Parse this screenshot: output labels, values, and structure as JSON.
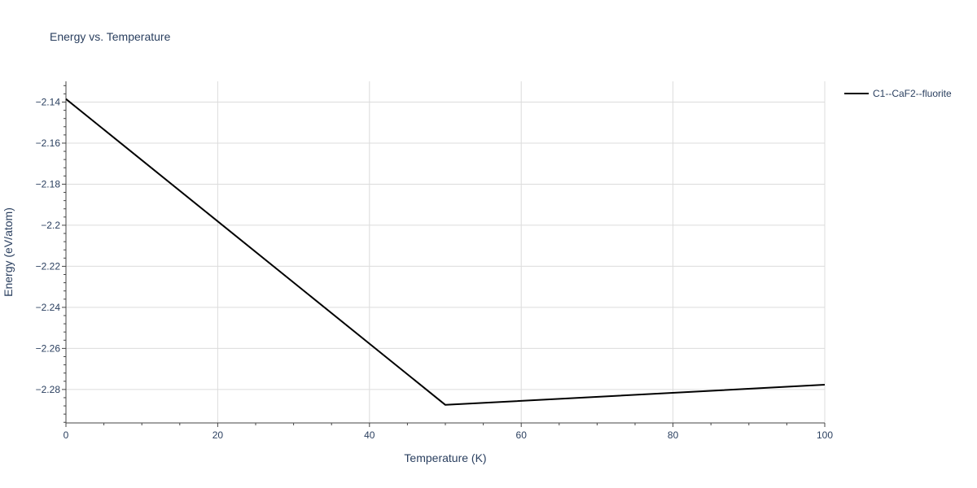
{
  "chart_data": {
    "type": "line",
    "title": "Energy vs. Temperature",
    "xlabel": "Temperature (K)",
    "ylabel": "Energy (eV/atom)",
    "xlim": [
      0,
      100
    ],
    "ylim": [
      -2.2963,
      -2.1299
    ],
    "x_ticks": [
      0,
      20,
      40,
      60,
      80,
      100
    ],
    "x_tick_labels": [
      "0",
      "20",
      "40",
      "60",
      "80",
      "100"
    ],
    "y_ticks": [
      -2.14,
      -2.16,
      -2.18,
      -2.2,
      -2.22,
      -2.24,
      -2.26,
      -2.28
    ],
    "y_tick_labels": [
      "−2.14",
      "−2.16",
      "−2.18",
      "−2.2",
      "−2.22",
      "−2.24",
      "−2.26",
      "−2.28"
    ],
    "grid": true,
    "legend_position": "top-right",
    "series": [
      {
        "name": "C1--CaF2--fluorite",
        "color": "#000000",
        "x": [
          0,
          50,
          100
        ],
        "y": [
          -2.1385,
          -2.2875,
          -2.2777
        ]
      }
    ]
  }
}
